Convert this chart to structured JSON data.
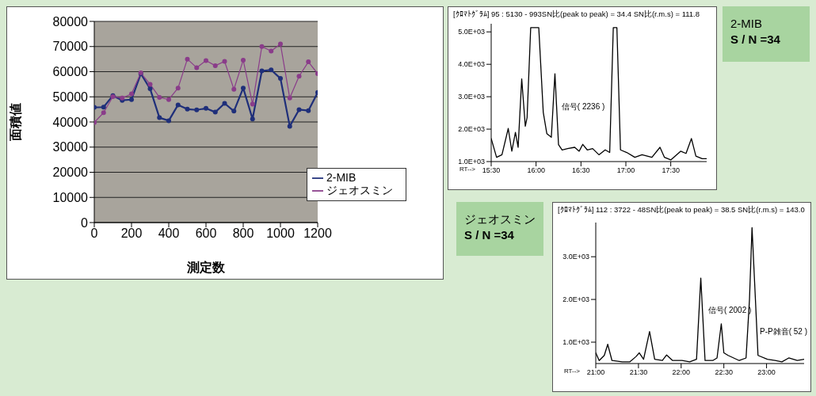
{
  "chart_data": [
    {
      "type": "line",
      "xlabel": "測定数",
      "ylabel": "面積値",
      "x": [
        0,
        50,
        100,
        150,
        200,
        250,
        300,
        350,
        400,
        450,
        500,
        550,
        600,
        650,
        700,
        750,
        800,
        850,
        900,
        950,
        1000,
        1050,
        1100,
        1150,
        1200
      ],
      "xlim": [
        0,
        1200
      ],
      "xticks": [
        0,
        200,
        400,
        600,
        800,
        1000,
        1200
      ],
      "ylim": [
        0,
        80000
      ],
      "yticks": [
        0,
        10000,
        20000,
        30000,
        40000,
        50000,
        60000,
        70000,
        80000
      ],
      "grid": "y",
      "legend": "bottom right",
      "marker": "circle",
      "series": [
        {
          "name": "2-MIB",
          "color": "#1f2f7a",
          "values": [
            45800,
            45900,
            50500,
            48600,
            48900,
            59200,
            53200,
            41700,
            40500,
            46800,
            45100,
            44800,
            45400,
            43900,
            47400,
            44300,
            53500,
            41200,
            60300,
            60700,
            57300,
            38300,
            44900,
            44500,
            51700
          ]
        },
        {
          "name": "ジェオスミン",
          "color": "#8a3c8a",
          "values": [
            39800,
            43700,
            50100,
            49500,
            51200,
            59500,
            55000,
            49800,
            48900,
            53500,
            65000,
            61600,
            64400,
            62400,
            64100,
            53000,
            64600,
            47100,
            70000,
            68200,
            71000,
            49500,
            58200,
            63900,
            59200
          ]
        }
      ]
    },
    {
      "type": "line",
      "title": "[ｸﾛﾏﾄｸﾞﾗﾑ] 95 : 5130 - 993SN比(peak to peak) = 34.4  SN比(r.m.s) = 111.8",
      "xlabel": "RT-->",
      "marker": "none",
      "x": [
        15.5,
        15.56,
        15.62,
        15.69,
        15.73,
        15.77,
        15.8,
        15.84,
        15.88,
        15.9,
        15.94,
        16.03,
        16.08,
        16.12,
        16.17,
        16.21,
        16.25,
        16.29,
        16.35,
        16.43,
        16.48,
        16.52,
        16.57,
        16.63,
        16.7,
        16.77,
        16.82,
        16.86,
        16.9,
        16.94,
        17.01,
        17.1,
        17.18,
        17.29,
        17.38,
        17.43,
        17.5,
        17.61,
        17.67,
        17.73,
        17.78,
        17.85,
        17.9
      ],
      "xlim": [
        15.5,
        17.9
      ],
      "xticks": [
        {
          "value": 15.5,
          "label": "15:30"
        },
        {
          "value": 16,
          "label": "16:00"
        },
        {
          "value": 16.5,
          "label": "16:30"
        },
        {
          "value": 17,
          "label": "17:00"
        },
        {
          "value": 17.5,
          "label": "17:30"
        }
      ],
      "ylim": [
        1000,
        5250
      ],
      "yticks": [
        {
          "value": 1000,
          "label": "1.0E+03"
        },
        {
          "value": 2000,
          "label": "2.0E+03"
        },
        {
          "value": 3000,
          "label": "3.0E+03"
        },
        {
          "value": 4000,
          "label": "4.0E+03"
        },
        {
          "value": 5000,
          "label": "5.0E+03"
        }
      ],
      "series": [
        {
          "color": "#000000",
          "values": [
            1710,
            1130,
            1210,
            2020,
            1320,
            1900,
            1440,
            3550,
            2090,
            2360,
            5130,
            5130,
            2520,
            1860,
            1750,
            3710,
            1520,
            1360,
            1400,
            1440,
            1320,
            1530,
            1360,
            1400,
            1210,
            1360,
            1280,
            5130,
            5130,
            1360,
            1280,
            1130,
            1210,
            1130,
            1440,
            1130,
            1050,
            1320,
            1250,
            1710,
            1170,
            1090,
            1090
          ]
        }
      ],
      "annotations": [
        "2-MIB",
        "S / N =34",
        {
          "text": "信号( 2236 )",
          "x": 16.24,
          "y": 2700
        }
      ]
    },
    {
      "type": "line",
      "title": "[ｸﾛﾏﾄｸﾞﾗﾑ] 112 : 3722 - 48SN比(peak to peak) = 38.5  SN比(r.m.s) = 143.0",
      "xlabel": "RT-->",
      "marker": "none",
      "x": [
        21,
        21.04,
        21.1,
        21.14,
        21.19,
        21.31,
        21.4,
        21.47,
        21.51,
        21.56,
        21.63,
        21.69,
        21.78,
        21.83,
        21.9,
        22.01,
        22.1,
        22.18,
        22.23,
        22.28,
        22.37,
        22.42,
        22.47,
        22.5,
        22.55,
        22.68,
        22.76,
        22.8,
        22.83,
        22.87,
        22.9,
        23.01,
        23.1,
        23.18,
        23.26,
        23.36,
        23.44
      ],
      "xlim": [
        21,
        23.44
      ],
      "xticks": [
        {
          "value": 21,
          "label": "21:00"
        },
        {
          "value": 21.5,
          "label": "21:30"
        },
        {
          "value": 22,
          "label": "22:00"
        },
        {
          "value": 22.5,
          "label": "22:30"
        },
        {
          "value": 23,
          "label": "23:00"
        }
      ],
      "ylim": [
        500,
        3800
      ],
      "yticks": [
        {
          "value": 1000,
          "label": "1.0E+03"
        },
        {
          "value": 2000,
          "label": "2.0E+03"
        },
        {
          "value": 3000,
          "label": "3.0E+03"
        }
      ],
      "series": [
        {
          "color": "#000000",
          "values": [
            750,
            570,
            690,
            950,
            570,
            540,
            540,
            660,
            750,
            600,
            1250,
            600,
            570,
            700,
            570,
            570,
            540,
            600,
            2500,
            570,
            570,
            630,
            1430,
            750,
            690,
            570,
            630,
            1990,
            3680,
            1990,
            690,
            600,
            570,
            540,
            630,
            570,
            600
          ]
        }
      ],
      "annotations": [
        "ジェオスミン",
        "S / N =34",
        {
          "text": "信号( 2002 )",
          "x": 22.27,
          "y": 1750
        },
        "P-P雑音( 52 )"
      ]
    }
  ]
}
